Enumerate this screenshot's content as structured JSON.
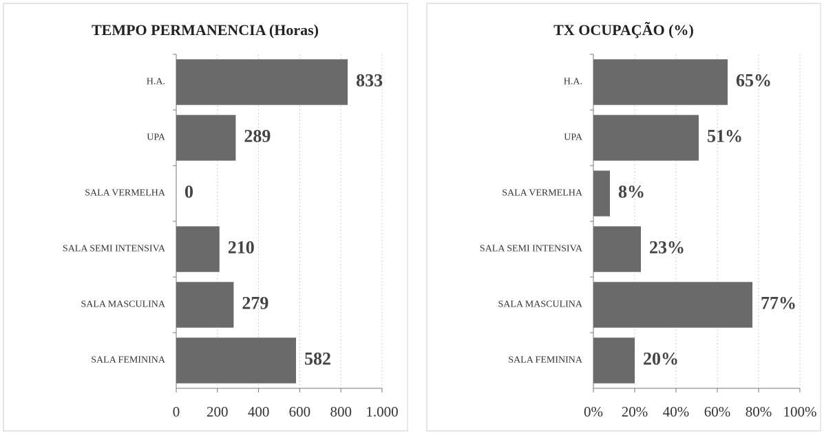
{
  "chart_data": [
    {
      "type": "barh",
      "title": "TEMPO PERMANENCIA (Horas)",
      "categories": [
        "H.A.",
        "UPA",
        "SALA VERMELHA",
        "SALA SEMI INTENSIVA",
        "SALA MASCULINA",
        "SALA FEMININA"
      ],
      "values": [
        833,
        289,
        0,
        210,
        279,
        582
      ],
      "color": "#6a6a6a",
      "xlim": [
        0,
        1000
      ],
      "xticks": [
        0,
        200,
        400,
        600,
        800,
        {
          "value": 1000,
          "label": "1.000"
        }
      ],
      "grid": true
    },
    {
      "type": "barh",
      "title": "TX OCUPAÇÃO (%)",
      "categories": [
        "H.A.",
        "UPA",
        "SALA VERMELHA",
        "SALA SEMI INTENSIVA",
        "SALA MASCULINA",
        "SALA FEMININA"
      ],
      "values": [
        65,
        51,
        8,
        23,
        77,
        20
      ],
      "value_labels": [
        "65%",
        "51%",
        "8%",
        "23%",
        "77%",
        "20%"
      ],
      "color": "#6a6a6a",
      "xlim": [
        0,
        100
      ],
      "xticks": [
        {
          "value": 0,
          "label": "0%"
        },
        {
          "value": 20,
          "label": "20%"
        },
        {
          "value": 40,
          "label": "40%"
        },
        {
          "value": 60,
          "label": "60%"
        },
        {
          "value": 80,
          "label": "80%"
        },
        {
          "value": 100,
          "label": "100%"
        }
      ],
      "grid": true
    }
  ]
}
